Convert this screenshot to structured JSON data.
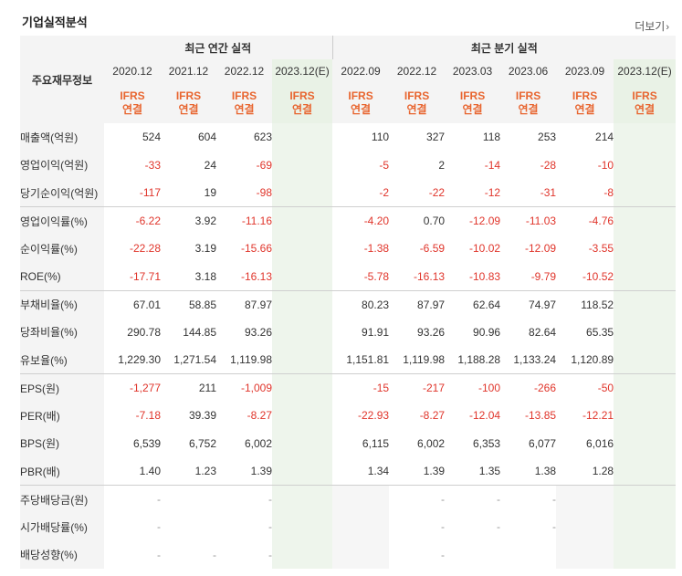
{
  "title": "기업실적분석",
  "more_label": "더보기",
  "row_header": "주요재무정보",
  "groups": {
    "annual": "최근 연간 실적",
    "quarterly": "최근 분기 실적"
  },
  "periods": [
    "2020.12",
    "2021.12",
    "2022.12",
    "2023.12(E)",
    "2022.09",
    "2022.12",
    "2023.03",
    "2023.06",
    "2023.09",
    "2023.12(E)"
  ],
  "ifrs": {
    "line1": "IFRS",
    "line2": "연결"
  },
  "rows": [
    {
      "label": "매출액(억원)",
      "values": [
        "524",
        "604",
        "623",
        "",
        "110",
        "327",
        "118",
        "253",
        "214",
        ""
      ]
    },
    {
      "label": "영업이익(억원)",
      "values": [
        "-33",
        "24",
        "-69",
        "",
        "-5",
        "2",
        "-14",
        "-28",
        "-10",
        ""
      ]
    },
    {
      "label": "당기순이익(억원)",
      "values": [
        "-117",
        "19",
        "-98",
        "",
        "-2",
        "-22",
        "-12",
        "-31",
        "-8",
        ""
      ]
    },
    {
      "label": "영업이익률(%)",
      "values": [
        "-6.22",
        "3.92",
        "-11.16",
        "",
        "-4.20",
        "0.70",
        "-12.09",
        "-11.03",
        "-4.76",
        ""
      ]
    },
    {
      "label": "순이익률(%)",
      "values": [
        "-22.28",
        "3.19",
        "-15.66",
        "",
        "-1.38",
        "-6.59",
        "-10.02",
        "-12.09",
        "-3.55",
        ""
      ]
    },
    {
      "label": "ROE(%)",
      "values": [
        "-17.71",
        "3.18",
        "-16.13",
        "",
        "-5.78",
        "-16.13",
        "-10.83",
        "-9.79",
        "-10.52",
        ""
      ]
    },
    {
      "label": "부채비율(%)",
      "values": [
        "67.01",
        "58.85",
        "87.97",
        "",
        "80.23",
        "87.97",
        "62.64",
        "74.97",
        "118.52",
        ""
      ]
    },
    {
      "label": "당좌비율(%)",
      "values": [
        "290.78",
        "144.85",
        "93.26",
        "",
        "91.91",
        "93.26",
        "90.96",
        "82.64",
        "65.35",
        ""
      ]
    },
    {
      "label": "유보율(%)",
      "values": [
        "1,229.30",
        "1,271.54",
        "1,119.98",
        "",
        "1,151.81",
        "1,119.98",
        "1,188.28",
        "1,133.24",
        "1,120.89",
        ""
      ]
    },
    {
      "label": "EPS(원)",
      "values": [
        "-1,277",
        "211",
        "-1,009",
        "",
        "-15",
        "-217",
        "-100",
        "-266",
        "-50",
        ""
      ]
    },
    {
      "label": "PER(배)",
      "values": [
        "-7.18",
        "39.39",
        "-8.27",
        "",
        "-22.93",
        "-8.27",
        "-12.04",
        "-13.85",
        "-12.21",
        ""
      ]
    },
    {
      "label": "BPS(원)",
      "values": [
        "6,539",
        "6,752",
        "6,002",
        "",
        "6,115",
        "6,002",
        "6,353",
        "6,077",
        "6,016",
        ""
      ]
    },
    {
      "label": "PBR(배)",
      "values": [
        "1.40",
        "1.23",
        "1.39",
        "",
        "1.34",
        "1.39",
        "1.35",
        "1.38",
        "1.28",
        ""
      ]
    },
    {
      "label": "주당배당금(원)",
      "values": [
        "-",
        "",
        "-",
        "",
        "",
        "-",
        "-",
        "-",
        "",
        ""
      ]
    },
    {
      "label": "시가배당률(%)",
      "values": [
        "-",
        "",
        "-",
        "",
        "",
        "-",
        "-",
        "-",
        "",
        ""
      ]
    },
    {
      "label": "배당성향(%)",
      "values": [
        "-",
        "-",
        "-",
        "",
        "",
        "-",
        "",
        "",
        "",
        ""
      ]
    }
  ],
  "colors": {
    "negative": "#e0352b",
    "ifrs": "#e8652f",
    "estimate_bg": "#eef5ec"
  }
}
